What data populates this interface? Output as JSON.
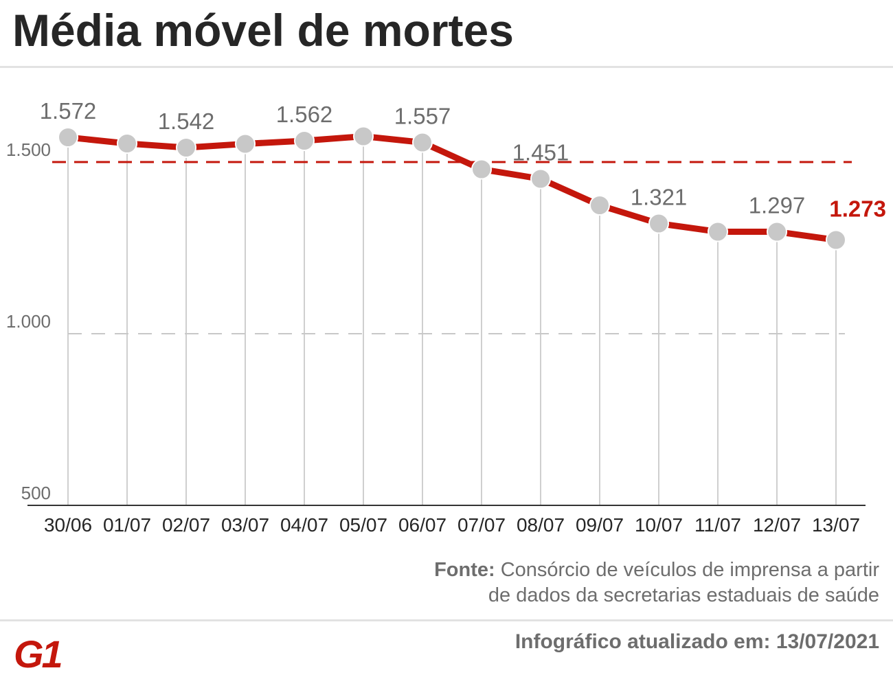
{
  "title": "Média móvel de mortes",
  "source": {
    "label": "Fonte:",
    "line1": "Consórcio de veículos de imprensa a partir",
    "line2": "de dados da secretarias estaduais de saúde"
  },
  "updated": "Infográfico atualizado em: 13/07/2021",
  "logo": {
    "text": "G1",
    "color": "#c4170c"
  },
  "colors": {
    "line": "#c4170c",
    "point": "#c8c8c8",
    "text": "#6d6d6d",
    "highlight": "#c4170c"
  },
  "chart_data": {
    "type": "line",
    "title": "Média móvel de mortes",
    "categories": [
      "30/06",
      "01/07",
      "02/07",
      "03/07",
      "04/07",
      "05/07",
      "06/07",
      "07/07",
      "08/07",
      "09/07",
      "10/07",
      "11/07",
      "12/07",
      "13/07"
    ],
    "series": [
      {
        "values": [
          1572,
          1554,
          1542,
          1553,
          1562,
          1575,
          1557,
          1479,
          1451,
          1374,
          1321,
          1297,
          1297,
          1273
        ]
      }
    ],
    "data_labels": [
      {
        "index": 0,
        "text": "1.572"
      },
      {
        "index": 2,
        "text": "1.542"
      },
      {
        "index": 4,
        "text": "1.562"
      },
      {
        "index": 6,
        "text": "1.557"
      },
      {
        "index": 8,
        "text": "1.451"
      },
      {
        "index": 10,
        "text": "1.321"
      },
      {
        "index": 12,
        "text": "1.297"
      },
      {
        "index": 13,
        "text": "1.273",
        "highlight": true
      }
    ],
    "yticks": [
      {
        "value": 500,
        "label": "500"
      },
      {
        "value": 1000,
        "label": "1.000"
      },
      {
        "value": 1500,
        "label": "1.500"
      }
    ],
    "reference_line": {
      "value": 1500,
      "style": "dashed",
      "color": "#c4170c"
    },
    "ylim": [
      500,
      1650
    ],
    "grid": "vertical per point, dashed horizontal at 1.000"
  }
}
